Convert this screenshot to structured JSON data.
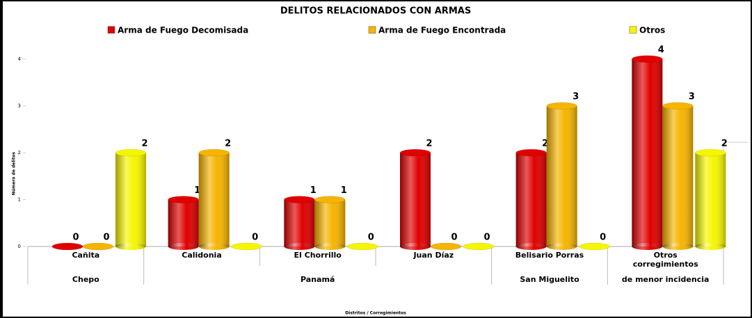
{
  "chart_data": {
    "type": "bar",
    "title": "DELITOS RELACIONADOS CON ARMAS",
    "x_label": "Distritos / Corregimientos",
    "y_label": "Número de delitos",
    "categories": [
      "Cañita",
      "Calidonia",
      "El Chorrillo",
      "Juan Díaz",
      "Belisario Porras",
      "Otros corregimientos"
    ],
    "groups": [
      "Chepo",
      "Panamá",
      "San Miguelito",
      "de menor incidencia"
    ],
    "series": [
      {
        "name": "Arma de Fuego Decomisada",
        "color": "#e00000",
        "values": [
          0,
          1,
          1,
          2,
          2,
          4
        ]
      },
      {
        "name": "Arma de Fuego Encontrada",
        "color": "#f5b400",
        "values": [
          0,
          2,
          1,
          0,
          3,
          3
        ]
      },
      {
        "name": "Otros",
        "color": "#f5f500",
        "values": [
          2,
          0,
          0,
          0,
          0,
          2
        ]
      }
    ],
    "ylim": [
      0,
      4
    ],
    "yticks": [
      0,
      1,
      2,
      3,
      4
    ]
  }
}
